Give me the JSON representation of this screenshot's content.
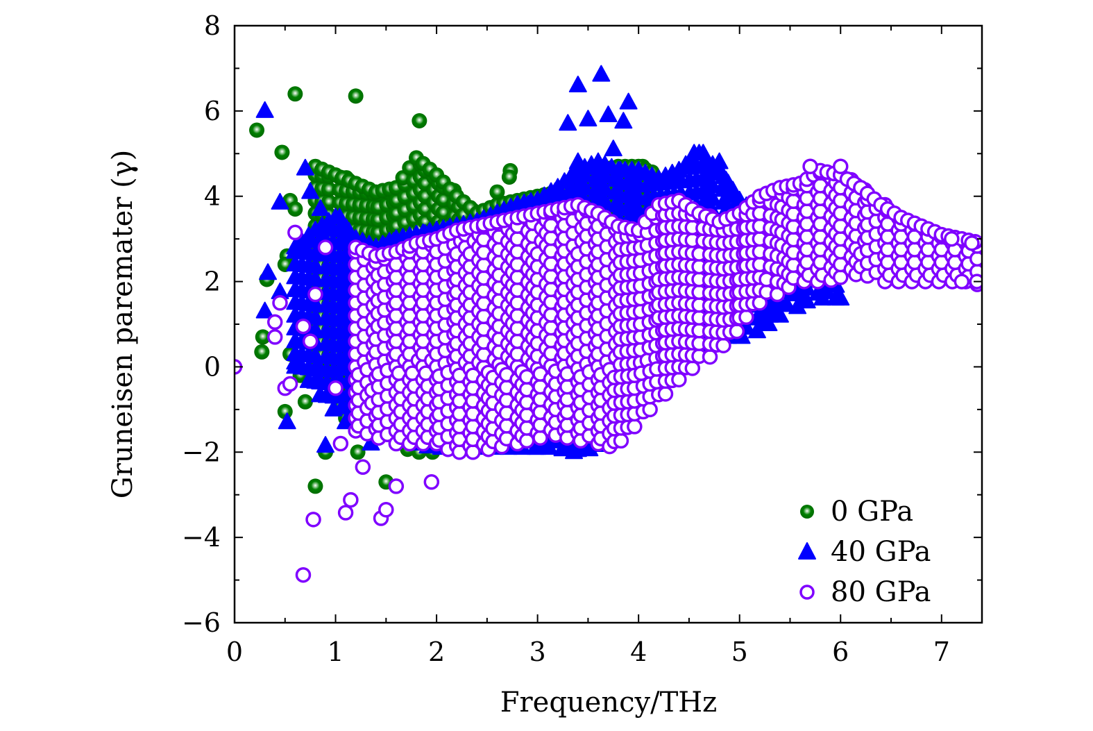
{
  "chart_data": {
    "type": "scatter",
    "title": "",
    "xlabel": "Frequency/THz",
    "ylabel": "Gruneisen paremater (γ)",
    "xlim": [
      0,
      7.4
    ],
    "ylim": [
      -6,
      8
    ],
    "xticks": [
      "0",
      "1",
      "2",
      "3",
      "4",
      "5",
      "6",
      "7"
    ],
    "yticks": [
      "−6",
      "−4",
      "−2",
      "0",
      "2",
      "4",
      "6",
      "8"
    ],
    "grid": false,
    "legend_position": "bottom-right",
    "series": [
      {
        "name": "0 GPa",
        "marker": "filled-sphere",
        "color": "#007f00",
        "points": [
          [
            0.22,
            5.55
          ],
          [
            0.6,
            6.4
          ],
          [
            1.2,
            6.35
          ],
          [
            1.83,
            5.77
          ],
          [
            0.47,
            5.03
          ],
          [
            0.28,
            0.7
          ],
          [
            0.27,
            0.35
          ],
          [
            0.32,
            2.05
          ],
          [
            0.52,
            2.6
          ],
          [
            0.5,
            2.4
          ],
          [
            0.55,
            3.9
          ],
          [
            0.6,
            3.7
          ],
          [
            0.8,
            -2.8
          ],
          [
            0.7,
            -0.82
          ],
          [
            0.5,
            -1.05
          ],
          [
            0.9,
            -2.0
          ],
          [
            1.22,
            -2.0
          ],
          [
            1.5,
            -2.7
          ],
          [
            1.1,
            -1.2
          ],
          [
            2.6,
            4.1
          ],
          [
            2.73,
            4.6
          ],
          [
            2.72,
            4.45
          ],
          [
            0.85,
            3.2
          ],
          [
            0.55,
            0.3
          ],
          [
            0.65,
            -0.2
          ],
          [
            1.05,
            -0.9
          ]
        ],
        "dense_band": [
          [
            0.8,
            0.0,
            4.7
          ],
          [
            1.0,
            -0.5,
            4.5
          ],
          [
            1.2,
            -1.0,
            4.3
          ],
          [
            1.4,
            -1.5,
            4.1
          ],
          [
            1.6,
            -1.8,
            4.2
          ],
          [
            1.8,
            -2.0,
            4.9
          ],
          [
            2.0,
            -2.0,
            4.5
          ],
          [
            2.2,
            -1.8,
            4.0
          ],
          [
            2.4,
            -1.0,
            3.6
          ],
          [
            2.6,
            0.0,
            3.8
          ],
          [
            2.8,
            0.5,
            3.9
          ],
          [
            3.0,
            1.0,
            4.0
          ],
          [
            3.2,
            1.0,
            4.1
          ],
          [
            3.4,
            1.5,
            4.5
          ],
          [
            3.6,
            1.5,
            4.6
          ],
          [
            3.8,
            1.8,
            4.7
          ],
          [
            4.0,
            2.0,
            4.7
          ],
          [
            4.2,
            2.0,
            4.5
          ]
        ]
      },
      {
        "name": "40 GPa",
        "marker": "filled-triangle",
        "color": "#0000ff",
        "points": [
          [
            0.3,
            6.0
          ],
          [
            0.45,
            3.85
          ],
          [
            0.33,
            2.2
          ],
          [
            0.3,
            1.3
          ],
          [
            0.52,
            -1.3
          ],
          [
            0.7,
            4.65
          ],
          [
            0.75,
            4.1
          ],
          [
            0.85,
            3.7
          ],
          [
            0.9,
            -1.85
          ],
          [
            1.1,
            -1.3
          ],
          [
            1.35,
            -1.8
          ],
          [
            1.4,
            -1.2
          ],
          [
            3.4,
            6.6
          ],
          [
            3.63,
            6.85
          ],
          [
            3.9,
            6.2
          ],
          [
            3.3,
            5.7
          ],
          [
            3.5,
            5.8
          ],
          [
            3.7,
            5.9
          ],
          [
            3.85,
            5.75
          ],
          [
            3.4,
            4.8
          ],
          [
            3.75,
            5.1
          ],
          [
            4.55,
            5.0
          ],
          [
            4.8,
            4.8
          ],
          [
            6.0,
            1.6
          ],
          [
            5.0,
            0.8
          ],
          [
            5.3,
            1.2
          ],
          [
            3.0,
            -1.9
          ],
          [
            3.4,
            -1.95
          ],
          [
            0.45,
            1.75
          ],
          [
            0.6,
            0.1
          ]
        ],
        "dense_band": [
          [
            0.6,
            0.0,
            2.8
          ],
          [
            0.8,
            -0.5,
            3.2
          ],
          [
            1.0,
            -1.0,
            3.5
          ],
          [
            1.2,
            -1.3,
            3.0
          ],
          [
            1.4,
            -1.5,
            2.8
          ],
          [
            1.6,
            -1.6,
            3.0
          ],
          [
            1.8,
            -1.8,
            3.1
          ],
          [
            2.0,
            -1.9,
            3.2
          ],
          [
            2.2,
            -1.9,
            3.3
          ],
          [
            2.4,
            -1.9,
            3.4
          ],
          [
            2.6,
            -1.9,
            3.6
          ],
          [
            2.8,
            -1.9,
            3.8
          ],
          [
            3.0,
            -1.9,
            3.9
          ],
          [
            3.2,
            -1.9,
            4.2
          ],
          [
            3.4,
            -2.0,
            4.6
          ],
          [
            3.6,
            -1.9,
            4.8
          ],
          [
            3.8,
            -1.7,
            4.6
          ],
          [
            4.0,
            -1.0,
            4.6
          ],
          [
            4.2,
            -0.5,
            4.4
          ],
          [
            4.4,
            0.0,
            4.6
          ],
          [
            4.6,
            0.5,
            5.0
          ],
          [
            4.8,
            0.7,
            4.6
          ],
          [
            5.0,
            0.7,
            3.9
          ],
          [
            5.2,
            0.9,
            3.5
          ],
          [
            5.4,
            1.2,
            3.0
          ],
          [
            5.6,
            1.5,
            2.8
          ],
          [
            5.8,
            1.6,
            2.6
          ],
          [
            6.0,
            1.6,
            2.4
          ]
        ]
      },
      {
        "name": "80 GPa",
        "marker": "open-circle",
        "color": "#7f00ff",
        "points": [
          [
            0.0,
            0.0
          ],
          [
            0.4,
            1.05
          ],
          [
            0.4,
            0.7
          ],
          [
            0.45,
            1.5
          ],
          [
            0.5,
            -0.5
          ],
          [
            0.55,
            -0.4
          ],
          [
            0.6,
            3.15
          ],
          [
            0.68,
            0.95
          ],
          [
            0.75,
            0.6
          ],
          [
            0.78,
            -3.58
          ],
          [
            0.68,
            -4.88
          ],
          [
            1.1,
            -3.42
          ],
          [
            1.15,
            -3.12
          ],
          [
            1.45,
            -3.55
          ],
          [
            1.5,
            -3.35
          ],
          [
            1.27,
            -2.35
          ],
          [
            1.6,
            -2.8
          ],
          [
            1.95,
            -2.7
          ],
          [
            0.8,
            1.7
          ],
          [
            0.9,
            2.8
          ],
          [
            1.0,
            -0.5
          ],
          [
            1.05,
            -1.8
          ],
          [
            7.1,
            3.0
          ],
          [
            7.3,
            2.9
          ],
          [
            7.35,
            2.0
          ],
          [
            7.2,
            2.0
          ],
          [
            6.0,
            4.7
          ],
          [
            5.7,
            4.7
          ]
        ],
        "dense_band": [
          [
            1.2,
            -1.5,
            2.8
          ],
          [
            1.4,
            -1.6,
            2.6
          ],
          [
            1.6,
            -1.8,
            2.7
          ],
          [
            1.8,
            -1.8,
            2.9
          ],
          [
            2.0,
            -1.8,
            3.0
          ],
          [
            2.2,
            -2.0,
            3.2
          ],
          [
            2.4,
            -2.0,
            3.3
          ],
          [
            2.6,
            -1.9,
            3.4
          ],
          [
            2.8,
            -1.8,
            3.5
          ],
          [
            3.0,
            -1.7,
            3.6
          ],
          [
            3.2,
            -1.6,
            3.7
          ],
          [
            3.4,
            -1.7,
            3.8
          ],
          [
            3.6,
            -1.8,
            3.6
          ],
          [
            3.8,
            -1.9,
            3.3
          ],
          [
            4.0,
            -1.4,
            3.2
          ],
          [
            4.2,
            -0.8,
            3.8
          ],
          [
            4.4,
            -0.3,
            3.9
          ],
          [
            4.6,
            0.1,
            3.6
          ],
          [
            4.8,
            0.5,
            3.4
          ],
          [
            5.0,
            1.0,
            3.6
          ],
          [
            5.2,
            1.5,
            4.0
          ],
          [
            5.4,
            1.8,
            4.2
          ],
          [
            5.6,
            2.0,
            4.3
          ],
          [
            5.8,
            2.0,
            4.6
          ],
          [
            6.0,
            2.1,
            4.5
          ],
          [
            6.2,
            2.2,
            4.2
          ],
          [
            6.4,
            2.0,
            3.8
          ],
          [
            6.6,
            2.0,
            3.5
          ],
          [
            6.8,
            2.0,
            3.3
          ],
          [
            7.0,
            2.0,
            3.1
          ],
          [
            7.2,
            2.0,
            3.0
          ],
          [
            7.4,
            1.9,
            2.9
          ]
        ]
      }
    ]
  }
}
